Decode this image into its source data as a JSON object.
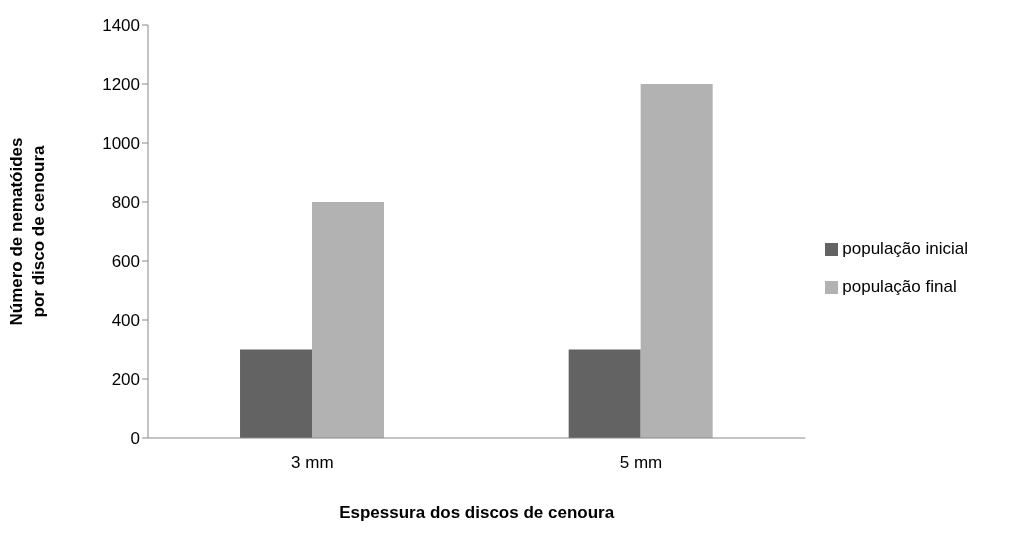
{
  "chart_data": {
    "type": "bar",
    "xlabel": "Espessura dos discos de cenoura",
    "ylabel": "Número de nematóides por disco de cenoura",
    "categories": [
      "3 mm",
      "5 mm"
    ],
    "series": [
      {
        "name": "população inicial",
        "color": "#636363",
        "values": [
          300,
          300
        ]
      },
      {
        "name": "população final",
        "color": "#b2b2b2",
        "values": [
          800,
          1200
        ]
      }
    ],
    "ylim": [
      0,
      1400
    ],
    "yticks": [
      0,
      200,
      400,
      600,
      800,
      1000,
      1200,
      1400
    ],
    "grid": false,
    "legend": "right"
  }
}
